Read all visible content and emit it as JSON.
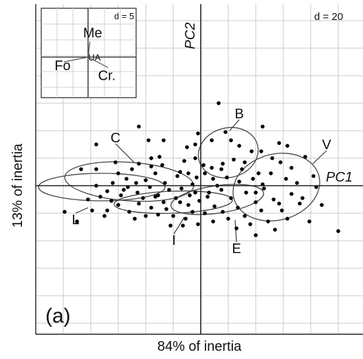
{
  "chart_data": {
    "type": "scatter",
    "panel_label": "(a)",
    "xlabel": "84% of inertia",
    "ylabel": "13% of inertia",
    "axis_name_vertical": "PC2",
    "axis_name_horizontal": "PC1",
    "grid_scale_label": "d = 20",
    "grid": true,
    "xlim": [
      -120,
      118
    ],
    "ylim": [
      -108,
      132
    ],
    "inset": {
      "scale_label": "d = 5",
      "variables": [
        {
          "name": "Me",
          "x": 0.2,
          "y": 1.6
        },
        {
          "name": "UA",
          "x": 0.1,
          "y": 0.5
        },
        {
          "name": "Fo",
          "x": -2.5,
          "y": -0.5
        },
        {
          "name": "Cr.",
          "x": 2.1,
          "y": -1.1
        }
      ]
    },
    "groups": [
      {
        "name": "B",
        "center": [
          20,
          24
        ],
        "sd": [
          22,
          18
        ],
        "angle": -15
      },
      {
        "name": "V",
        "center": [
          55,
          -1
        ],
        "sd": [
          32,
          24
        ],
        "angle": -15
      },
      {
        "name": "C",
        "center": [
          -52,
          3
        ],
        "sd": [
          47,
          14
        ],
        "angle": 4
      },
      {
        "name": "L",
        "center": [
          -72,
          -1
        ],
        "sd": [
          46,
          10
        ],
        "angle": 0
      },
      {
        "name": "I",
        "center": [
          -20,
          -12
        ],
        "sd": [
          43,
          8
        ],
        "angle": -2
      },
      {
        "name": "E",
        "center": [
          12,
          -10
        ],
        "sd": [
          34,
          10
        ],
        "angle": -8
      }
    ],
    "points": [
      [
        13,
        60
      ],
      [
        45,
        43
      ],
      [
        -45,
        43
      ],
      [
        -38,
        33
      ],
      [
        -27,
        33
      ],
      [
        -10,
        28
      ],
      [
        -30,
        21
      ],
      [
        -2,
        38
      ],
      [
        8,
        33
      ],
      [
        18,
        39
      ],
      [
        22,
        33
      ],
      [
        28,
        29
      ],
      [
        37,
        25
      ],
      [
        44,
        25
      ],
      [
        57,
        31
      ],
      [
        -76,
        30
      ],
      [
        -36,
        20
      ],
      [
        -45,
        16
      ],
      [
        -36,
        14
      ],
      [
        -12,
        18
      ],
      [
        -4,
        20
      ],
      [
        2,
        15
      ],
      [
        8,
        13
      ],
      [
        16,
        16
      ],
      [
        24,
        19
      ],
      [
        30,
        12
      ],
      [
        42,
        9
      ],
      [
        52,
        20
      ],
      [
        58,
        17
      ],
      [
        66,
        13
      ],
      [
        76,
        21
      ],
      [
        82,
        7
      ],
      [
        -76,
        12
      ],
      [
        -60,
        9
      ],
      [
        -50,
        12
      ],
      [
        -54,
        5
      ],
      [
        -47,
        2
      ],
      [
        -40,
        4
      ],
      [
        -33,
        9
      ],
      [
        -26,
        2
      ],
      [
        -17,
        7
      ],
      [
        -9,
        9
      ],
      [
        -3,
        6
      ],
      [
        -6,
        1
      ],
      [
        3,
        9
      ],
      [
        9,
        5
      ],
      [
        12,
        0
      ],
      [
        19,
        6
      ],
      [
        28,
        3
      ],
      [
        38,
        5
      ],
      [
        45,
        1
      ],
      [
        51,
        9
      ],
      [
        62,
        5
      ],
      [
        70,
        2
      ],
      [
        84,
        -1
      ],
      [
        -76,
        0
      ],
      [
        -68,
        -4
      ],
      [
        -64,
        2
      ],
      [
        -58,
        -7
      ],
      [
        -53,
        -1
      ],
      [
        -46,
        -5
      ],
      [
        -42,
        -9
      ],
      [
        -37,
        -1
      ],
      [
        -31,
        -7
      ],
      [
        -27,
        -12
      ],
      [
        -23,
        -3
      ],
      [
        -18,
        -9
      ],
      [
        -14,
        -2
      ],
      [
        -9,
        -14
      ],
      [
        -4,
        -5
      ],
      [
        -1,
        -11
      ],
      [
        6,
        -5
      ],
      [
        10,
        -15
      ],
      [
        15,
        -3
      ],
      [
        22,
        -9
      ],
      [
        27,
        -16
      ],
      [
        33,
        -5
      ],
      [
        40,
        -12
      ],
      [
        46,
        -2
      ],
      [
        53,
        -10
      ],
      [
        59,
        -18
      ],
      [
        66,
        -6
      ],
      [
        72,
        -13
      ],
      [
        79,
        -26
      ],
      [
        -68,
        -18
      ],
      [
        -60,
        -14
      ],
      [
        -52,
        -19
      ],
      [
        -45,
        -13
      ],
      [
        -36,
        -16
      ],
      [
        -31,
        -21
      ],
      [
        -25,
        -17
      ],
      [
        -20,
        -22
      ],
      [
        -15,
        -12
      ],
      [
        -11,
        -24
      ],
      [
        -6,
        -19
      ],
      [
        3,
        -20
      ],
      [
        9,
        -26
      ],
      [
        16,
        -19
      ],
      [
        20,
        -24
      ],
      [
        32,
        -22
      ],
      [
        44,
        -18
      ],
      [
        49,
        -26
      ],
      [
        63,
        -24
      ],
      [
        88,
        -14
      ],
      [
        -99,
        -19
      ],
      [
        -90,
        -26
      ],
      [
        -82,
        -10
      ],
      [
        -73,
        -8
      ],
      [
        -65,
        -11
      ],
      [
        -56,
        -3
      ],
      [
        -48,
        -24
      ],
      [
        -40,
        -22
      ],
      [
        -33,
        -8
      ],
      [
        -22,
        -29
      ],
      [
        -13,
        -29
      ],
      [
        -2,
        -28
      ],
      [
        5,
        -8
      ],
      [
        26,
        -31
      ],
      [
        36,
        -28
      ],
      [
        40,
        -36
      ],
      [
        54,
        -32
      ],
      [
        -79,
        -18
      ],
      [
        -70,
        -22
      ],
      [
        -15,
        10
      ],
      [
        -8,
        -7
      ],
      [
        15,
        12
      ],
      [
        32,
        17
      ],
      [
        40,
        -5
      ],
      [
        57,
        -13
      ],
      [
        74,
        -9
      ],
      [
        100,
        -33
      ],
      [
        -62,
        17
      ],
      [
        -28,
        15
      ],
      [
        -4,
        30
      ],
      [
        63,
        29
      ],
      [
        -87,
        12
      ]
    ]
  }
}
